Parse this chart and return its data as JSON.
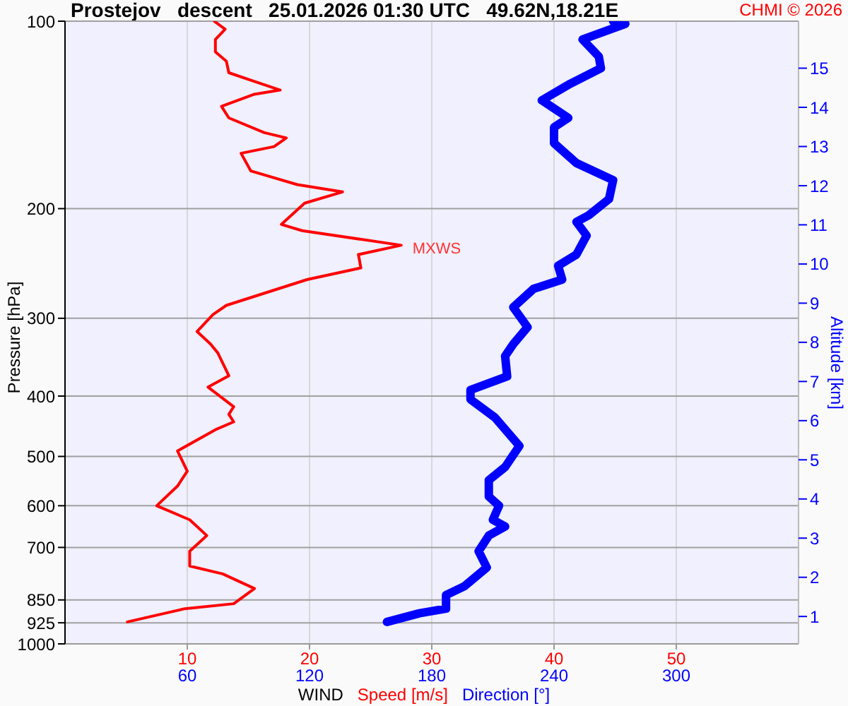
{
  "chart_data": {
    "type": "line",
    "title": "Prostejov   descent   25.01.2026 01:30 UTC   49.62N,18.21E",
    "xlabel": "WIND",
    "ylabel": "Pressure [hPa]",
    "y2label": "Altitude [km]",
    "xlim": [
      0,
      60
    ],
    "xticks": [
      10,
      20,
      30,
      40,
      50
    ],
    "x2lim": [
      0,
      360
    ],
    "x2ticks": [
      60,
      120,
      180,
      240,
      300
    ],
    "ylim": [
      1000,
      100
    ],
    "log": "y",
    "yticks": [
      100,
      200,
      300,
      400,
      500,
      600,
      700,
      850,
      925,
      1000
    ],
    "y2lim": [
      0.3,
      16.2
    ],
    "y2ticks": [
      1,
      2,
      3,
      4,
      5,
      6,
      7,
      8,
      9,
      10,
      11,
      12,
      13,
      14,
      15
    ],
    "grid": true,
    "legend": "bottom",
    "marker": "none",
    "series": [
      {
        "name": "Speed [m/s]",
        "color": "#ff0000",
        "values": [
          100,
          103,
          107,
          112,
          116,
          121,
          125,
          129,
          131,
          137,
          143,
          151,
          154,
          159,
          163,
          174,
          183,
          188,
          196,
          212,
          217,
          229,
          237,
          249,
          260,
          286,
          296,
          315,
          330,
          341,
          371,
          387,
          416,
          428,
          440,
          453,
          490,
          528,
          558,
          600,
          632,
          670,
          710,
          750,
          772,
          815,
          862,
          878,
          922
        ],
        "x": [
          12.2,
          13.1,
          12.3,
          12.3,
          13.2,
          13.4,
          15.5,
          17.6,
          15.5,
          12.8,
          13.4,
          16.3,
          18.1,
          17.1,
          14.4,
          15.2,
          19.0,
          22.7,
          19.6,
          17.7,
          19.4,
          27.5,
          24.0,
          24.2,
          19.8,
          13.2,
          12.1,
          10.8,
          11.9,
          12.5,
          13.4,
          11.7,
          13.8,
          13.4,
          13.8,
          12.3,
          9.2,
          10.0,
          9.2,
          7.5,
          10.2,
          11.6,
          10.2,
          10.2,
          12.9,
          15.5,
          13.8,
          9.8,
          5.1
        ]
      },
      {
        "name": "Direction [°]",
        "color": "#0000ff",
        "axis": "x2",
        "values": [
          100,
          101,
          107,
          114,
          119,
          126,
          134,
          143,
          148,
          157,
          169,
          180,
          193,
          205,
          210,
          221,
          237,
          247,
          260,
          269,
          288,
          310,
          330,
          345,
          372,
          391,
          405,
          433,
          481,
          520,
          546,
          580,
          600,
          632,
          648,
          670,
          710,
          754,
          808,
          835,
          878,
          893,
          922
        ],
        "x": [
          269,
          275,
          254,
          262,
          263,
          248,
          234,
          247,
          240,
          240,
          251,
          269,
          267,
          257,
          251,
          256,
          251,
          242,
          244,
          230,
          220,
          227,
          220,
          216,
          217,
          199,
          199,
          211,
          223,
          216,
          208,
          208,
          213,
          210,
          216,
          208,
          203,
          207,
          196,
          187,
          187,
          174,
          158
        ]
      }
    ],
    "annotations": [
      {
        "text": "MXWS",
        "x": 27.5,
        "y": 231
      },
      "CHMI © 2026"
    ]
  }
}
